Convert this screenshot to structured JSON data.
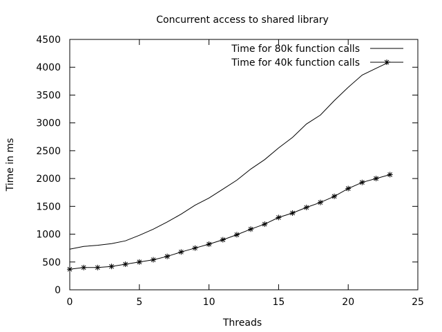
{
  "chart_data": {
    "type": "line",
    "title": "Concurrent access to shared library",
    "xlabel": "Threads",
    "ylabel": "Time in ms",
    "xlim": [
      0,
      25
    ],
    "ylim": [
      0,
      4500
    ],
    "xticks": [
      0,
      5,
      10,
      15,
      20,
      25
    ],
    "yticks": [
      0,
      500,
      1000,
      1500,
      2000,
      2500,
      3000,
      3500,
      4000,
      4500
    ],
    "grid": false,
    "legend_position": "top-right",
    "series": [
      {
        "name": "Time for 80k function calls",
        "style": "line",
        "x": [
          0,
          1,
          2,
          3,
          4,
          5,
          6,
          7,
          8,
          9,
          10,
          11,
          12,
          13,
          14,
          15,
          16,
          17,
          18,
          19,
          20,
          21,
          22,
          23
        ],
        "y": [
          730,
          780,
          800,
          830,
          880,
          980,
          1090,
          1220,
          1360,
          1520,
          1650,
          1810,
          1970,
          2170,
          2340,
          2550,
          2740,
          2980,
          3140,
          3400,
          3640,
          3860,
          3980,
          4100
        ]
      },
      {
        "name": "Time for 40k function calls",
        "style": "linespoints",
        "x": [
          0,
          1,
          2,
          3,
          4,
          5,
          6,
          7,
          8,
          9,
          10,
          11,
          12,
          13,
          14,
          15,
          16,
          17,
          18,
          19,
          20,
          21,
          22,
          23
        ],
        "y": [
          370,
          400,
          400,
          420,
          460,
          500,
          540,
          600,
          680,
          750,
          820,
          900,
          990,
          1090,
          1180,
          1300,
          1380,
          1480,
          1570,
          1680,
          1820,
          1930,
          2000,
          2070
        ]
      }
    ]
  }
}
